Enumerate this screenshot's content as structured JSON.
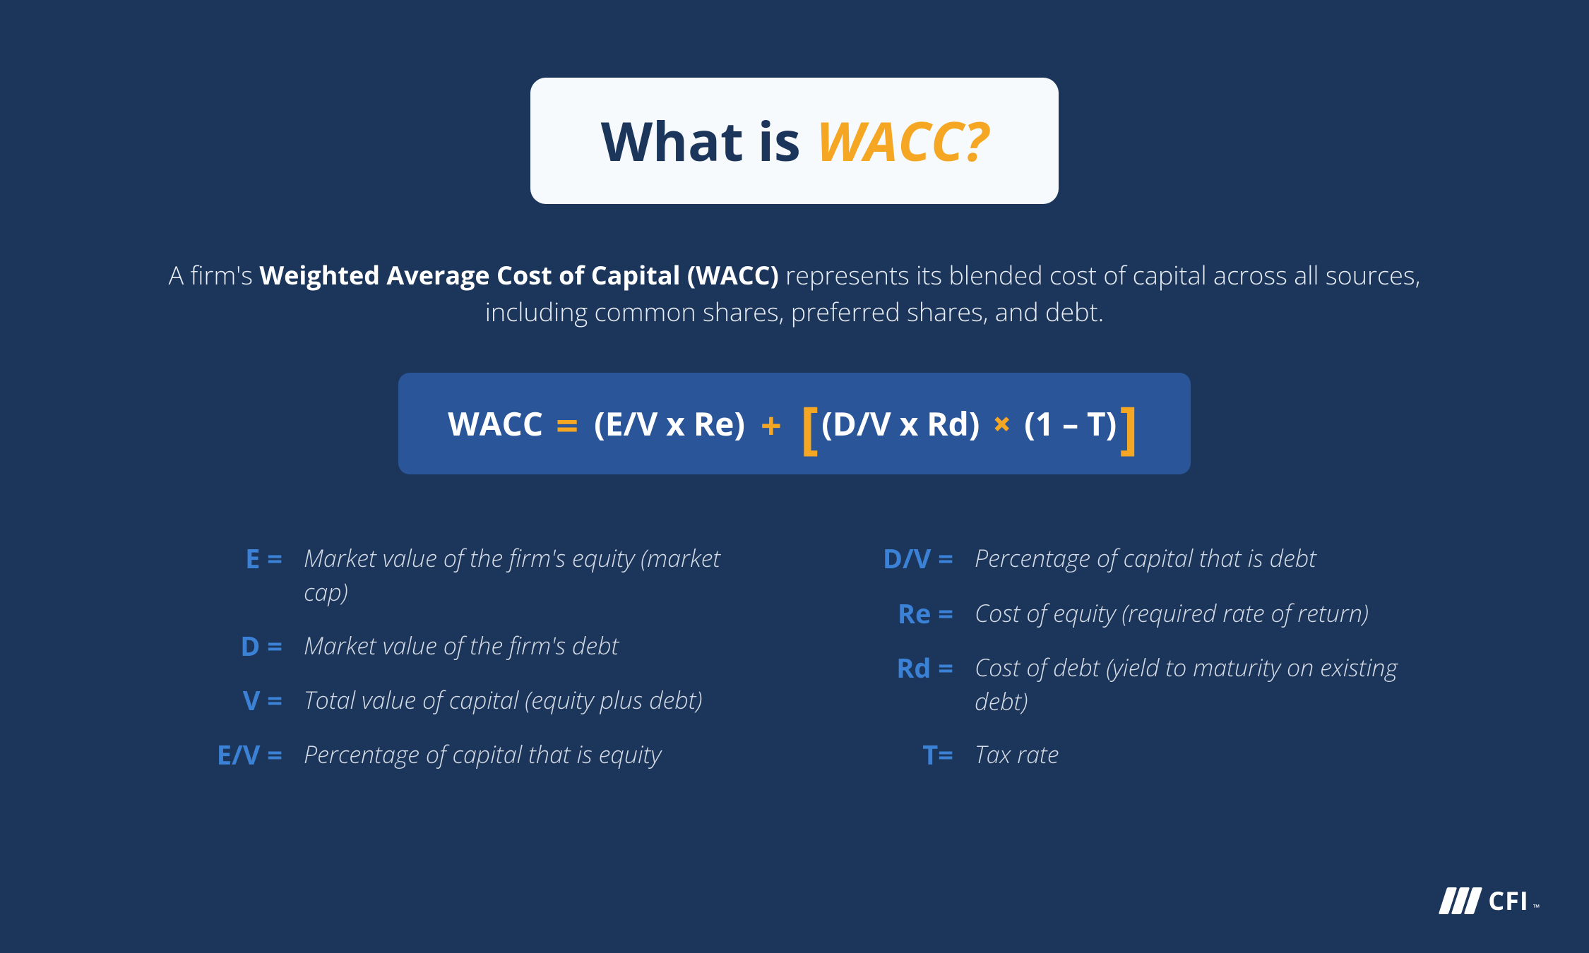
{
  "colors": {
    "background": "#1c355b",
    "pill_bg": "#f7fafc",
    "title_dark": "#1c355b",
    "accent_orange": "#f5a623",
    "formula_bg": "#2a5599",
    "symbol_blue": "#3b82d6",
    "body_text": "#e8edf3",
    "def_text": "#d5dce5",
    "white": "#ffffff"
  },
  "typography": {
    "title_fontsize": 76,
    "desc_fontsize": 36,
    "formula_fontsize": 46,
    "def_sym_fontsize": 38,
    "def_text_fontsize": 34,
    "logo_fontsize": 36
  },
  "title": {
    "prefix": "What is",
    "highlight": "WACC?"
  },
  "description": {
    "pre": "A firm's ",
    "bold": "Weighted Average Cost of Capital (WACC)",
    "post": " represents its blended cost of capital across all sources, including common shares, preferred shares, and debt."
  },
  "formula": {
    "label": "WACC",
    "eq": "=",
    "term1": "(E/V x Re)",
    "plus": "+",
    "lbracket": "[",
    "term2": "(D/V x Rd)",
    "times": "×",
    "term3": "(1 – T)",
    "rbracket": "]"
  },
  "definitions": {
    "left": [
      {
        "sym": "E =",
        "text": "Market value of the firm's equity (market cap)"
      },
      {
        "sym": "D =",
        "text": "Market value of the firm's debt"
      },
      {
        "sym": "V =",
        "text": "Total value of capital (equity plus debt)"
      },
      {
        "sym": "E/V =",
        "text": "Percentage of capital that is equity"
      }
    ],
    "right": [
      {
        "sym": "D/V =",
        "text": "Percentage of capital that is debt"
      },
      {
        "sym": "Re =",
        "text": "Cost of equity (required rate of return)"
      },
      {
        "sym": "Rd =",
        "text": "Cost of debt (yield to maturity on existing debt)"
      },
      {
        "sym": "T=",
        "text": "Tax rate"
      }
    ]
  },
  "logo": {
    "text": "CFI",
    "tm": "™"
  }
}
